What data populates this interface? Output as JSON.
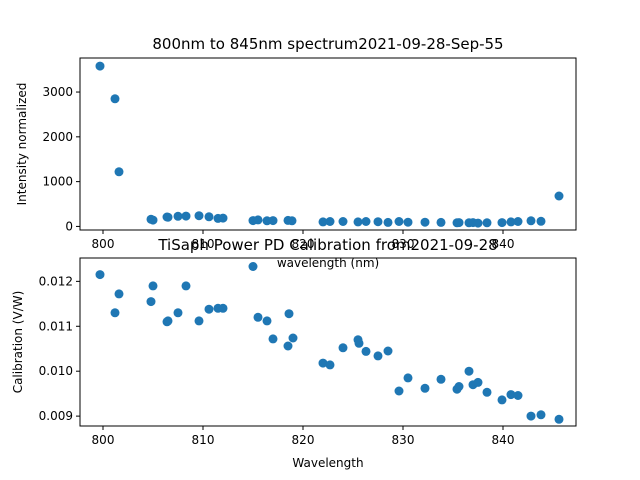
{
  "chart_data": [
    {
      "type": "scatter",
      "title": "800nm to 845nm spectrum2021-09-28-Sep-55",
      "xlabel": "wavelength (nm)",
      "ylabel": "Intensity normalized",
      "xlim": [
        797.7,
        847.3
      ],
      "ylim": [
        -80,
        3760
      ],
      "xticks": [
        800,
        810,
        820,
        830,
        840
      ],
      "yticks": [
        0,
        1000,
        2000,
        3000
      ],
      "color": "#1f77b4",
      "grid": false,
      "points": [
        [
          799.7,
          3580
        ],
        [
          801.2,
          2850
        ],
        [
          801.6,
          1220
        ],
        [
          804.8,
          160
        ],
        [
          805.0,
          140
        ],
        [
          806.4,
          210
        ],
        [
          806.5,
          205
        ],
        [
          807.5,
          225
        ],
        [
          808.3,
          230
        ],
        [
          809.6,
          240
        ],
        [
          810.6,
          215
        ],
        [
          811.5,
          180
        ],
        [
          812.0,
          185
        ],
        [
          815.0,
          130
        ],
        [
          815.5,
          145
        ],
        [
          816.4,
          125
        ],
        [
          817.0,
          130
        ],
        [
          818.5,
          135
        ],
        [
          818.9,
          125
        ],
        [
          822.0,
          100
        ],
        [
          822.7,
          110
        ],
        [
          824.0,
          110
        ],
        [
          825.5,
          100
        ],
        [
          826.3,
          110
        ],
        [
          827.5,
          105
        ],
        [
          828.5,
          90
        ],
        [
          829.6,
          110
        ],
        [
          830.5,
          95
        ],
        [
          832.2,
          95
        ],
        [
          833.8,
          90
        ],
        [
          835.4,
          80
        ],
        [
          835.6,
          85
        ],
        [
          836.6,
          80
        ],
        [
          837.0,
          85
        ],
        [
          837.5,
          75
        ],
        [
          838.4,
          80
        ],
        [
          839.9,
          85
        ],
        [
          840.8,
          100
        ],
        [
          841.5,
          110
        ],
        [
          842.8,
          125
        ],
        [
          843.8,
          115
        ],
        [
          845.6,
          680
        ]
      ]
    },
    {
      "type": "scatter",
      "title": "TiSaph Power PD Calibration from2021-09-28",
      "xlabel": "Wavelength",
      "ylabel": "Calibration (V/W)",
      "xlim": [
        797.7,
        847.3
      ],
      "ylim": [
        0.00878,
        0.01252
      ],
      "xticks": [
        800,
        810,
        820,
        830,
        840
      ],
      "yticks": [
        "0.009",
        "0.010",
        "0.011",
        "0.012"
      ],
      "ytick_values": [
        0.009,
        0.01,
        0.011,
        0.012
      ],
      "color": "#1f77b4",
      "grid": false,
      "points": [
        [
          799.7,
          0.01215
        ],
        [
          801.2,
          0.0113
        ],
        [
          801.6,
          0.01172
        ],
        [
          804.8,
          0.01155
        ],
        [
          805.0,
          0.0119
        ],
        [
          806.4,
          0.0111
        ],
        [
          806.5,
          0.01112
        ],
        [
          807.5,
          0.0113
        ],
        [
          808.3,
          0.0119
        ],
        [
          809.6,
          0.01112
        ],
        [
          810.6,
          0.01138
        ],
        [
          811.5,
          0.0114
        ],
        [
          812.0,
          0.0114
        ],
        [
          815.0,
          0.01233
        ],
        [
          815.5,
          0.0112
        ],
        [
          816.4,
          0.01112
        ],
        [
          817.0,
          0.01072
        ],
        [
          818.5,
          0.01056
        ],
        [
          818.6,
          0.01128
        ],
        [
          819.0,
          0.01074
        ],
        [
          822.0,
          0.01018
        ],
        [
          822.7,
          0.01014
        ],
        [
          824.0,
          0.01052
        ],
        [
          825.5,
          0.0107
        ],
        [
          825.6,
          0.01062
        ],
        [
          826.3,
          0.01044
        ],
        [
          827.5,
          0.01034
        ],
        [
          828.5,
          0.01045
        ],
        [
          829.6,
          0.00956
        ],
        [
          830.5,
          0.00985
        ],
        [
          832.2,
          0.00962
        ],
        [
          833.8,
          0.00982
        ],
        [
          835.4,
          0.0096
        ],
        [
          835.6,
          0.00966
        ],
        [
          836.6,
          0.01
        ],
        [
          837.0,
          0.0097
        ],
        [
          837.5,
          0.00975
        ],
        [
          838.4,
          0.00953
        ],
        [
          839.9,
          0.00936
        ],
        [
          840.8,
          0.00948
        ],
        [
          841.5,
          0.00946
        ],
        [
          842.8,
          0.009
        ],
        [
          843.8,
          0.00903
        ],
        [
          845.6,
          0.00893
        ]
      ]
    }
  ]
}
